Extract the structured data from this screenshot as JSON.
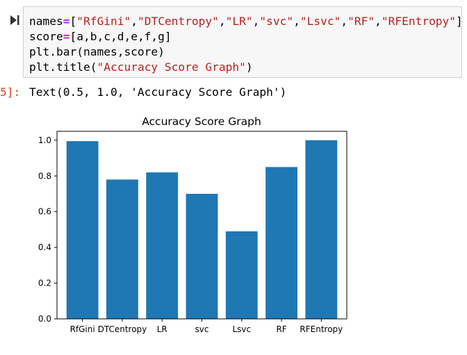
{
  "cell": {
    "code_lines": [
      {
        "parts": [
          {
            "t": "names",
            "c": "plain"
          },
          {
            "t": "=",
            "c": "op"
          },
          {
            "t": "[",
            "c": "plain"
          },
          {
            "t": "\"RfGini\"",
            "c": "str"
          },
          {
            "t": ",",
            "c": "plain"
          },
          {
            "t": "\"DTCentropy\"",
            "c": "str"
          },
          {
            "t": ",",
            "c": "plain"
          },
          {
            "t": "\"LR\"",
            "c": "str"
          },
          {
            "t": ",",
            "c": "plain"
          },
          {
            "t": "\"svc\"",
            "c": "str"
          },
          {
            "t": ",",
            "c": "plain"
          },
          {
            "t": "\"Lsvc\"",
            "c": "str"
          },
          {
            "t": ",",
            "c": "plain"
          },
          {
            "t": "\"RF\"",
            "c": "str"
          },
          {
            "t": ",",
            "c": "plain"
          },
          {
            "t": "\"RFEntropy\"",
            "c": "str"
          },
          {
            "t": "]",
            "c": "plain"
          }
        ]
      },
      {
        "parts": [
          {
            "t": "score",
            "c": "plain"
          },
          {
            "t": "=",
            "c": "op"
          },
          {
            "t": "[a,b,c,d,e,f,g]",
            "c": "plain"
          }
        ]
      },
      {
        "parts": [
          {
            "t": "plt.bar(names,score)",
            "c": "plain"
          }
        ]
      },
      {
        "parts": [
          {
            "t": "plt.title(",
            "c": "plain"
          },
          {
            "t": "\"Accuracy Score Graph\"",
            "c": "str"
          },
          {
            "t": ")",
            "c": "plain"
          }
        ]
      }
    ],
    "output_prompt": "5]:",
    "output_text": "Text(0.5, 1.0, 'Accuracy Score Graph')",
    "run_icon": "run-cell-icon"
  },
  "chart_data": {
    "type": "bar",
    "title": "Accuracy Score Graph",
    "categories": [
      "RfGini",
      "DTCentropy",
      "LR",
      "svc",
      "Lsvc",
      "RF",
      "RFEntropy"
    ],
    "values": [
      0.995,
      0.78,
      0.82,
      0.7,
      0.49,
      0.85,
      1.0
    ],
    "ylim": [
      0,
      1.05
    ],
    "yticks": [
      "0.0",
      "0.2",
      "0.4",
      "0.6",
      "0.8",
      "1.0"
    ],
    "bar_color": "#1f77b4",
    "grid": false
  }
}
